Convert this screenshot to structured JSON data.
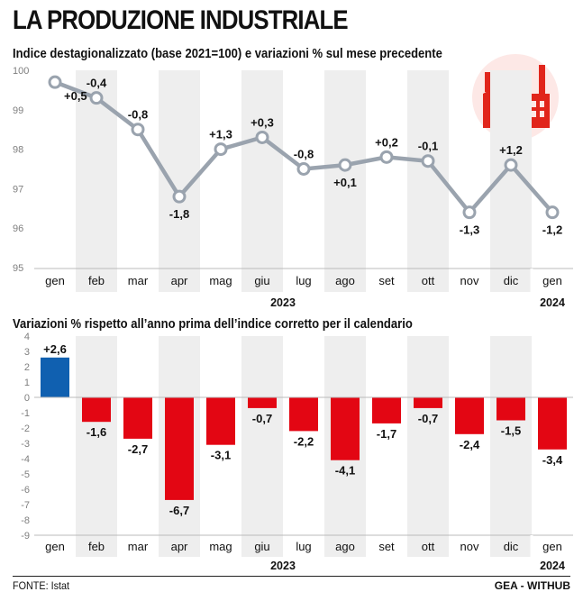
{
  "header": {
    "title": "LA PRODUZIONE INDUSTRIALE",
    "icon": "factory-icon"
  },
  "footer": {
    "source": "FONTE: Istat",
    "credit": "GEA - WITHUB"
  },
  "colors": {
    "line": "#9aa3ae",
    "marker_fill": "#ffffff",
    "band": "#eeeeee",
    "positive_bar": "#1060b0",
    "negative_bar": "#e30613",
    "icon_red": "#e1251b",
    "icon_bg": "#fde8e6"
  },
  "chart_data": [
    {
      "type": "line",
      "title": "Indice destagionalizzato (base 2021=100) e variazioni % sul mese precedente",
      "categories": [
        "gen",
        "feb",
        "mar",
        "apr",
        "mag",
        "giu",
        "lug",
        "ago",
        "set",
        "ott",
        "nov",
        "dic",
        "gen"
      ],
      "year_labels": [
        "2023",
        "2024"
      ],
      "values": [
        99.7,
        99.3,
        98.5,
        96.8,
        98.0,
        98.3,
        97.5,
        97.6,
        97.8,
        97.7,
        96.4,
        97.6,
        96.4
      ],
      "data_labels": [
        "+0,5",
        "-0,4",
        "-0,8",
        "-1,8",
        "+1,3",
        "+0,3",
        "-0,8",
        "+0,1",
        "+0,2",
        "-0,1",
        "-1,3",
        "+1,2",
        "-1,2"
      ],
      "label_positions": [
        "right",
        "above",
        "above",
        "below",
        "above",
        "above",
        "above",
        "below",
        "above",
        "above",
        "below",
        "above",
        "below"
      ],
      "ylim": [
        95,
        100
      ],
      "yticks": [
        "95",
        "96",
        "97",
        "98",
        "99",
        "100"
      ],
      "grid": "alternating column bands"
    },
    {
      "type": "bar",
      "title": "Variazioni % rispetto all’anno prima dell’indice corretto per il calendario",
      "categories": [
        "gen",
        "feb",
        "mar",
        "apr",
        "mag",
        "giu",
        "lug",
        "ago",
        "set",
        "ott",
        "nov",
        "dic",
        "gen"
      ],
      "year_labels": [
        "2023",
        "2024"
      ],
      "values": [
        2.6,
        -1.6,
        -2.7,
        -6.7,
        -3.1,
        -0.7,
        -2.2,
        -4.1,
        -1.7,
        -0.7,
        -2.4,
        -1.5,
        -3.4
      ],
      "data_labels": [
        "+2,6",
        "-1,6",
        "-2,7",
        "-6,7",
        "-3,1",
        "-0,7",
        "-2,2",
        "-4,1",
        "-1,7",
        "-0,7",
        "-2,4",
        "-1,5",
        "-3,4"
      ],
      "ylim": [
        -9,
        4
      ],
      "yticks": [
        "4",
        "3",
        "2",
        "1",
        "0",
        "-1",
        "-2",
        "-3",
        "-4",
        "-5",
        "-6",
        "-7",
        "-8",
        "-9"
      ],
      "grid": "alternating column bands"
    }
  ]
}
